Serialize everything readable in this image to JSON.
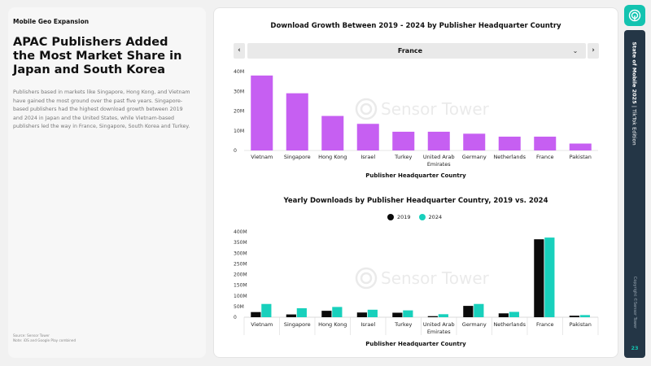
{
  "sidebar": {
    "eyebrow": "Mobile Geo Expansion",
    "headline": "APAC Publishers Added the Most Market Share in Japan and South Korea",
    "body": "Publishers based in markets like Singapore, Hong Kong, and Vietnam have gained the most ground over the past five years. Singapore-based publishers had the highest download growth between 2019 and 2024 in Japan and the United States, while Vietnam-based publishers led the way in France, Singapore, South Korea and Turkey.",
    "source_line1": "Source: Sensor Tower",
    "source_line2": "Note: iOS and Google Play combined"
  },
  "rail": {
    "title_bold": "State of Mobile 2025",
    "title_rest": "| TikTok Edition",
    "copyright": "Copyright ©Sensor Tower",
    "page_number": "23",
    "logo_icon": "sensor-tower-logo-icon"
  },
  "colors": {
    "growth_bar": "#c65ff2",
    "series_2019": "#0b0b0b",
    "series_2024": "#18d0bc",
    "accent": "#13c3b0"
  },
  "watermark": "Sensor Tower",
  "filter": {
    "selected": "France",
    "prev_icon": "chevron-left-icon",
    "next_icon": "chevron-right-icon",
    "caret_icon": "chevron-down-icon"
  },
  "chart_data": [
    {
      "type": "bar",
      "title": "Download Growth Between 2019 - 2024 by Publisher Headquarter Country",
      "xlabel": "Publisher Headquarter Country",
      "ylabel": "",
      "categories": [
        "Vietnam",
        "Singapore",
        "Hong Kong",
        "Israel",
        "Turkey",
        "United Arab Emirates",
        "Germany",
        "Netherlands",
        "France",
        "Pakistan"
      ],
      "values": [
        38,
        29,
        17.5,
        13.5,
        9.5,
        9.5,
        8.5,
        7,
        7,
        3.5
      ],
      "yticks": [
        "0",
        "10M",
        "20M",
        "30M",
        "40M"
      ],
      "ylim": [
        0,
        40
      ],
      "grid": false
    },
    {
      "type": "bar",
      "title": "Yearly Downloads by Publisher Headquarter Country, 2019 vs. 2024",
      "xlabel": "Publisher Headquarter Country",
      "ylabel": "",
      "legend": "top-center",
      "categories": [
        "Vietnam",
        "Singapore",
        "Hong Kong",
        "Israel",
        "Turkey",
        "United Arab Emirates",
        "Germany",
        "Netherlands",
        "France",
        "Pakistan"
      ],
      "series": [
        {
          "name": "2019",
          "values": [
            24,
            13,
            30,
            22,
            21,
            5,
            53,
            18,
            365,
            7
          ]
        },
        {
          "name": "2024",
          "values": [
            62,
            42,
            48,
            35,
            32,
            14,
            62,
            25,
            373,
            10
          ]
        }
      ],
      "yticks": [
        "0",
        "50M",
        "100M",
        "150M",
        "200M",
        "250M",
        "300M",
        "350M",
        "400M"
      ],
      "ylim": [
        0,
        400
      ],
      "grid": false
    }
  ]
}
